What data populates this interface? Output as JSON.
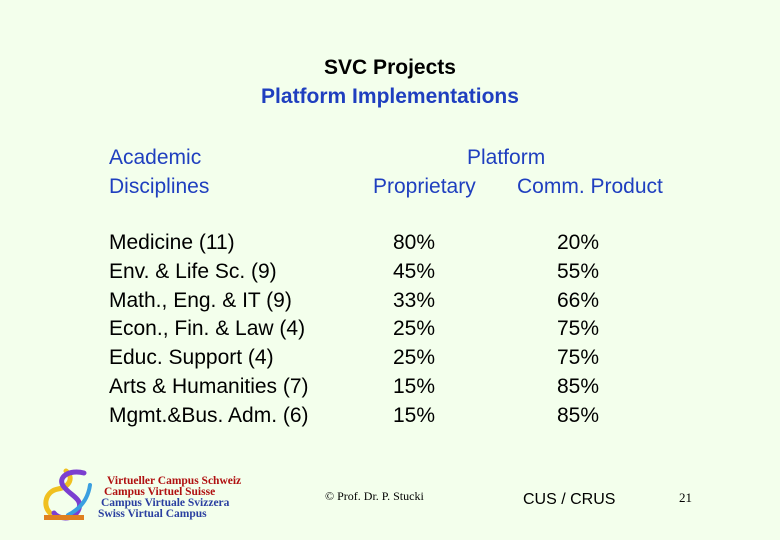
{
  "header": {
    "title": "SVC Projects",
    "subtitle": "Platform Implementations"
  },
  "table": {
    "col1_header_lines": [
      "Academic",
      "Disciplines"
    ],
    "platform_header": "Platform",
    "col2_header": "Proprietary",
    "col3_header": "Comm. Product",
    "rows": [
      {
        "discipline": "Medicine (11)",
        "proprietary": "80%",
        "commercial": "20%"
      },
      {
        "discipline": "Env. & Life Sc. (9)",
        "proprietary": "45%",
        "commercial": "55%"
      },
      {
        "discipline": "Math., Eng. & IT (9)",
        "proprietary": "33%",
        "commercial": "66%"
      },
      {
        "discipline": "Econ., Fin. & Law (4)",
        "proprietary": "25%",
        "commercial": "75%"
      },
      {
        "discipline": "Educ. Support (4)",
        "proprietary": "25%",
        "commercial": "75%"
      },
      {
        "discipline": "Arts & Humanities (7)",
        "proprietary": "15%",
        "commercial": "85%"
      },
      {
        "discipline": "Mgmt.&Bus. Adm. (6)",
        "proprietary": "15%",
        "commercial": "85%"
      }
    ]
  },
  "footer": {
    "logo_lines": [
      "Virtueller Campus Schweiz",
      "Campus Virtuel Suisse",
      "Campus Virtuale Svizzera",
      "Swiss Virtual Campus"
    ],
    "copyright": "© Prof. Dr. P. Stucki",
    "org": "CUS / CRUS",
    "page_number": "21"
  },
  "colors": {
    "background": "#f3ffec",
    "accent_blue": "#1f3fbf",
    "logo_red": "#b01010",
    "logo_blue": "#2a3fa0"
  },
  "icons": {
    "logo": "svc-logo-icon"
  }
}
